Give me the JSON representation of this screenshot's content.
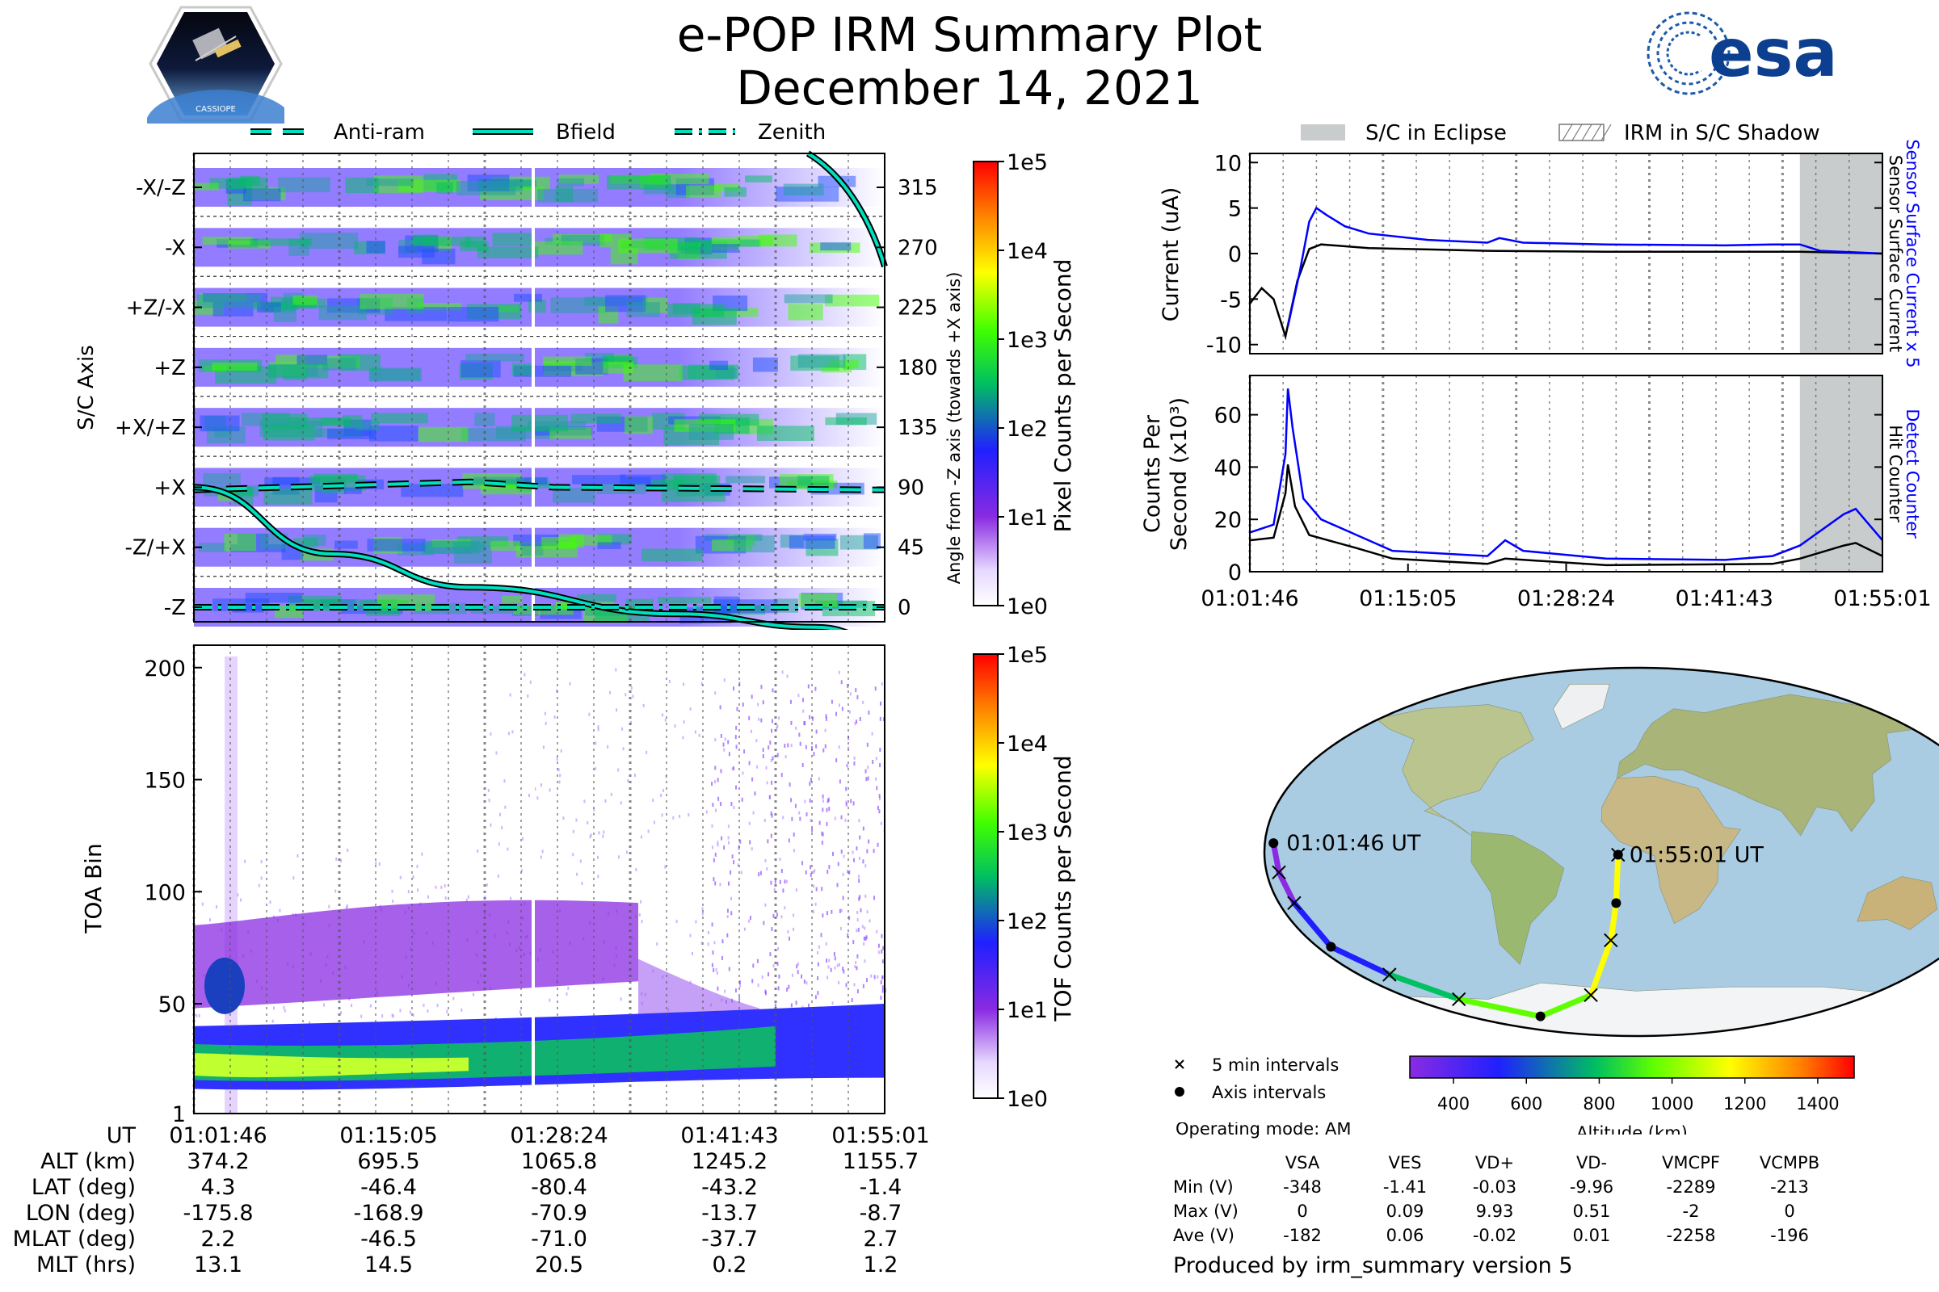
{
  "header": {
    "title": "e-POP IRM Summary Plot",
    "date": "December 14, 2021",
    "left_logo": {
      "icon": "cassiope-mission-logo-icon",
      "label": "CASSIOPE"
    },
    "right_logo": {
      "icon": "esa-logo-icon",
      "label": "esa"
    }
  },
  "colors": {
    "sc_current": "#0000ff",
    "sensor_current": "#000000",
    "detect_counter": "#0000ff",
    "hit_counter": "#000000",
    "eclipse": "#c8cccc",
    "trace": "#00e0c0"
  },
  "chart_data": [
    {
      "id": "sc_axis_spectrogram",
      "type": "heatmap",
      "ylabel": "S/C Axis",
      "ylabel_right": "Angle from -Z axis (towards +X axis)",
      "y_tick_labels_left": [
        "-X/-Z",
        "-X",
        "+Z/-X",
        "+Z",
        "+X/+Z",
        "+X",
        "-Z/+X",
        "-Z"
      ],
      "y_tick_values_right": [
        315,
        270,
        225,
        180,
        135,
        90,
        45,
        0
      ],
      "x_ticks": [
        "01:01:46",
        "01:15:05",
        "01:28:24",
        "01:41:43",
        "01:55:01"
      ],
      "legend": [
        "Anti-ram",
        "Bfield",
        "Zenith"
      ],
      "colorbar": {
        "label": "Pixel Counts per Second",
        "scale": "log",
        "ticks": [
          "1e0",
          "1e1",
          "1e2",
          "1e3",
          "1e4",
          "1e5"
        ]
      },
      "traces": {
        "anti_ram_deg": [
          [
            0,
            88
          ],
          [
            0.4,
            94
          ],
          [
            0.52,
            90
          ],
          [
            1,
            88
          ]
        ],
        "bfield_deg": [
          [
            0,
            90
          ],
          [
            0.2,
            40
          ],
          [
            0.4,
            15
          ],
          [
            0.7,
            -5
          ],
          [
            0.9,
            -15
          ],
          [
            1,
            -25
          ]
        ],
        "zenith_deg": [
          [
            0,
            0
          ],
          [
            1,
            0
          ]
        ]
      }
    },
    {
      "id": "toa_spectrogram",
      "type": "heatmap",
      "ylabel": "TOA Bin",
      "y_ticks": [
        1,
        50,
        100,
        150,
        200
      ],
      "ylim": [
        1,
        210
      ],
      "x_ticks": [
        "01:01:46",
        "01:15:05",
        "01:28:24",
        "01:41:43",
        "01:55:01"
      ],
      "colorbar": {
        "label": "TOF Counts per Second",
        "scale": "log",
        "ticks": [
          "1e0",
          "1e1",
          "1e2",
          "1e3",
          "1e4",
          "1e5"
        ]
      }
    },
    {
      "id": "current_plot",
      "type": "line",
      "ylabel": "Current (uA)",
      "ylim": [
        -11,
        11
      ],
      "y_ticks": [
        -10,
        -5,
        0,
        5,
        10
      ],
      "legend": [
        "S/C in Eclipse",
        "IRM in S/C Shadow"
      ],
      "right_labels": [
        "Sensor Surface Current x 5",
        "Sensor Surface Current"
      ],
      "eclipse_start_min": 46.3,
      "x_range_min": [
        0,
        53.25
      ],
      "series": [
        {
          "name": "Sensor Surface Current x 5",
          "color": "#0000ff",
          "values": [
            [
              3.2,
              -8
            ],
            [
              4.2,
              -2
            ],
            [
              5.0,
              3.5
            ],
            [
              5.6,
              5.0
            ],
            [
              6.5,
              4.2
            ],
            [
              8,
              3.0
            ],
            [
              10,
              2.2
            ],
            [
              15,
              1.5
            ],
            [
              20,
              1.2
            ],
            [
              21,
              1.7
            ],
            [
              23,
              1.2
            ],
            [
              30,
              1.0
            ],
            [
              40,
              0.9
            ],
            [
              44,
              1.0
            ],
            [
              46.3,
              1.0
            ],
            [
              48,
              0.3
            ],
            [
              53.25,
              0.0
            ]
          ]
        },
        {
          "name": "Sensor Surface Current",
          "color": "#000000",
          "values": [
            [
              0,
              -5.5
            ],
            [
              1.0,
              -3.8
            ],
            [
              2.0,
              -5
            ],
            [
              3.0,
              -9.1
            ],
            [
              4.0,
              -3
            ],
            [
              5.0,
              0.5
            ],
            [
              6.0,
              1.0
            ],
            [
              10,
              0.6
            ],
            [
              20,
              0.3
            ],
            [
              30,
              0.2
            ],
            [
              46.3,
              0.2
            ],
            [
              53.25,
              0.0
            ]
          ]
        }
      ]
    },
    {
      "id": "counts_plot",
      "type": "line",
      "ylabel": "Counts Per Second (x10³)",
      "ylim": [
        0,
        75
      ],
      "y_ticks": [
        0,
        20,
        40,
        60
      ],
      "right_labels": [
        "Detect Counter",
        "Hit Counter"
      ],
      "x_ticks": [
        "01:01:46",
        "01:15:05",
        "01:28:24",
        "01:41:43",
        "01:55:01"
      ],
      "x_range_min": [
        0,
        53.25
      ],
      "eclipse_start_min": 46.3,
      "series": [
        {
          "name": "Detect Counter",
          "color": "#0000ff",
          "values": [
            [
              0,
              15
            ],
            [
              2,
              18
            ],
            [
              3,
              45
            ],
            [
              3.2,
              70
            ],
            [
              3.6,
              55
            ],
            [
              4.5,
              28
            ],
            [
              6,
              20
            ],
            [
              9,
              14
            ],
            [
              12,
              8
            ],
            [
              20,
              6
            ],
            [
              21.5,
              12
            ],
            [
              23,
              8
            ],
            [
              30,
              5
            ],
            [
              40,
              4.5
            ],
            [
              44,
              6
            ],
            [
              46.3,
              10
            ],
            [
              50,
              22
            ],
            [
              51,
              24
            ],
            [
              53.25,
              12
            ]
          ]
        },
        {
          "name": "Hit Counter",
          "color": "#000000",
          "values": [
            [
              0,
              12
            ],
            [
              2,
              13
            ],
            [
              3,
              30
            ],
            [
              3.2,
              41
            ],
            [
              3.8,
              25
            ],
            [
              5,
              14
            ],
            [
              9,
              9
            ],
            [
              12,
              5
            ],
            [
              20,
              3
            ],
            [
              21.5,
              5
            ],
            [
              30,
              2.5
            ],
            [
              44,
              3
            ],
            [
              46.3,
              5
            ],
            [
              50,
              10
            ],
            [
              51,
              11
            ],
            [
              53.25,
              6
            ]
          ]
        }
      ]
    },
    {
      "id": "orbit_map",
      "type": "scatter",
      "start_label": "01:01:46 UT",
      "end_label": "01:55:01 UT",
      "legend": [
        "5 min intervals",
        "Axis intervals"
      ],
      "colorbar": {
        "label": "Altitude (km)",
        "ticks": [
          400,
          600,
          800,
          1000,
          1200,
          1400
        ],
        "range": [
          280,
          1500
        ]
      },
      "track_lon_lat_alt": [
        [
          -175.8,
          4.3,
          374
        ],
        [
          -174,
          -10,
          420
        ],
        [
          -172,
          -25,
          520
        ],
        [
          -168.9,
          -46.4,
          695
        ],
        [
          -150,
          -60,
          800
        ],
        [
          -120,
          -72,
          930
        ],
        [
          -70.9,
          -80.4,
          1065
        ],
        [
          -30,
          -70,
          1180
        ],
        [
          -13.7,
          -43.2,
          1245
        ],
        [
          -10,
          -25,
          1210
        ],
        [
          -8.7,
          -1.4,
          1155
        ]
      ]
    }
  ],
  "time_table": {
    "row_labels": [
      "UT",
      "ALT (km)",
      "LAT (deg)",
      "LON (deg)",
      "MLAT (deg)",
      "MLT (hrs)"
    ],
    "columns": [
      [
        "01:01:46",
        "374.2",
        "4.3",
        "-175.8",
        "2.2",
        "13.1"
      ],
      [
        "01:15:05",
        "695.5",
        "-46.4",
        "-168.9",
        "-46.5",
        "14.5"
      ],
      [
        "01:28:24",
        "1065.8",
        "-80.4",
        "-70.9",
        "-71.0",
        "20.5"
      ],
      [
        "01:41:43",
        "1245.2",
        "-43.2",
        "-13.7",
        "-37.7",
        "0.2"
      ],
      [
        "01:55:01",
        "1155.7",
        "-1.4",
        "-8.7",
        "2.7",
        "1.2"
      ]
    ]
  },
  "voltage_table": {
    "operating_mode": "Operating mode: AM",
    "headers": [
      "VSA",
      "VES",
      "VD+",
      "VD-",
      "VMCPF",
      "VCMPB"
    ],
    "rows": [
      {
        "label": "Min (V)",
        "values": [
          "-348",
          "-1.41",
          "-0.03",
          "-9.96",
          "-2289",
          "-213"
        ]
      },
      {
        "label": "Max (V)",
        "values": [
          "0",
          "0.09",
          "9.93",
          "0.51",
          "-2",
          "0"
        ]
      },
      {
        "label": "Ave (V)",
        "values": [
          "-182",
          "0.06",
          "-0.02",
          "0.01",
          "-2258",
          "-196"
        ]
      }
    ]
  },
  "footer": "Produced by irm_summary version 5"
}
